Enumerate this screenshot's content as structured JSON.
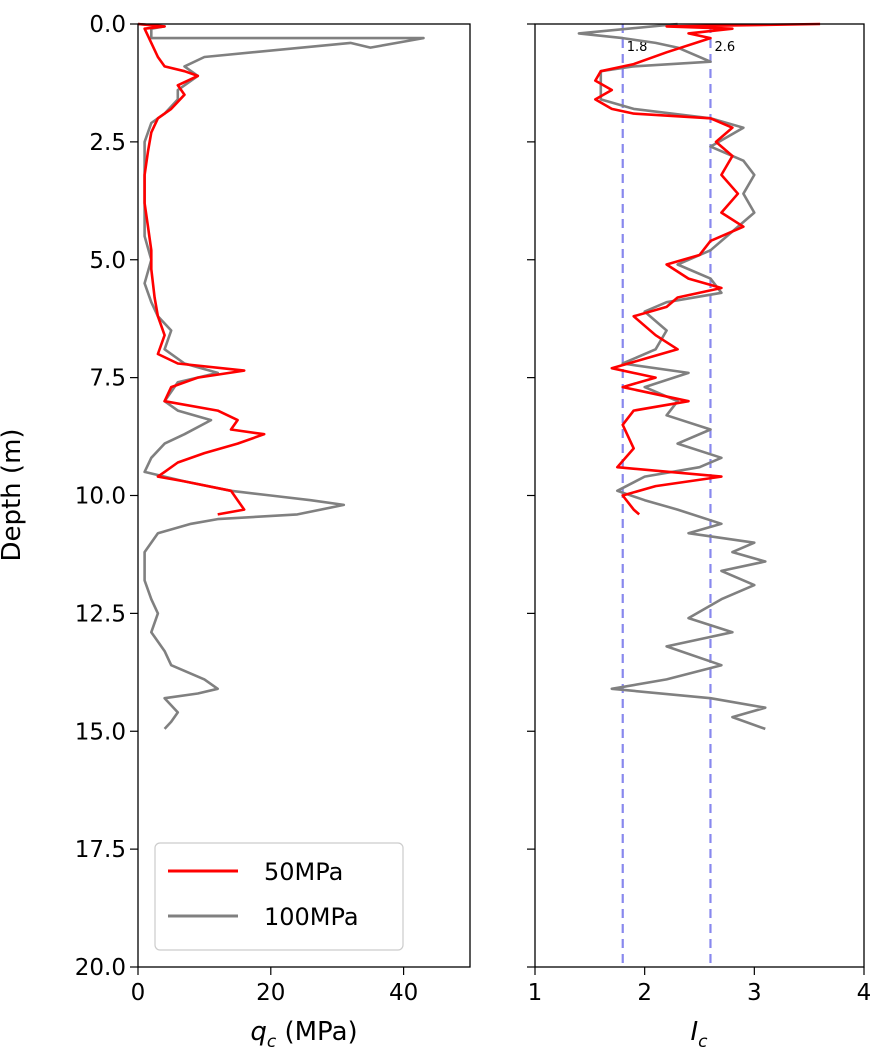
{
  "chart_data": [
    {
      "type": "line",
      "ylabel": "Depth (m)",
      "xlabel_main": "q",
      "xlabel_sub": "c",
      "xlabel_unit": " (MPa)",
      "xlim": [
        0,
        50
      ],
      "ylim": [
        20,
        0
      ],
      "xticks": [
        0,
        20,
        40
      ],
      "xtick_labels": [
        "0",
        "20",
        "40"
      ],
      "yticks": [
        0,
        2.5,
        5,
        7.5,
        10,
        12.5,
        15,
        17.5,
        20
      ],
      "ytick_labels": [
        "0.0",
        "2.5",
        "5.0",
        "7.5",
        "10.0",
        "12.5",
        "15.0",
        "17.5",
        "20.0"
      ],
      "legend_position": "lower-left",
      "series": [
        {
          "name": "50MPa",
          "color": "#ff0000",
          "points": [
            [
              0,
              0
            ],
            [
              4,
              0.05
            ],
            [
              1,
              0.1
            ],
            [
              2,
              0.4
            ],
            [
              3,
              0.7
            ],
            [
              4,
              0.9
            ],
            [
              7,
              1.0
            ],
            [
              9,
              1.1
            ],
            [
              6,
              1.3
            ],
            [
              7,
              1.5
            ],
            [
              5,
              1.8
            ],
            [
              3,
              2.0
            ],
            [
              2,
              2.3
            ],
            [
              1.5,
              2.7
            ],
            [
              1,
              3.2
            ],
            [
              1,
              3.8
            ],
            [
              1.5,
              4.3
            ],
            [
              2,
              4.8
            ],
            [
              2,
              5.2
            ],
            [
              2.5,
              5.8
            ],
            [
              3,
              6.2
            ],
            [
              4,
              6.6
            ],
            [
              3,
              7.0
            ],
            [
              6,
              7.2
            ],
            [
              16,
              7.35
            ],
            [
              9,
              7.5
            ],
            [
              5,
              7.7
            ],
            [
              4,
              8.0
            ],
            [
              12,
              8.2
            ],
            [
              15,
              8.4
            ],
            [
              14,
              8.6
            ],
            [
              19,
              8.7
            ],
            [
              15,
              8.9
            ],
            [
              10,
              9.1
            ],
            [
              6,
              9.3
            ],
            [
              4,
              9.5
            ],
            [
              3,
              9.6
            ],
            [
              7,
              9.7
            ],
            [
              14,
              9.9
            ],
            [
              15,
              10.1
            ],
            [
              16,
              10.3
            ],
            [
              12,
              10.4
            ]
          ]
        },
        {
          "name": "100MPa",
          "color": "#808080",
          "points": [
            [
              0,
              0
            ],
            [
              4,
              0.05
            ],
            [
              2,
              0.1
            ],
            [
              2,
              0.3
            ],
            [
              43,
              0.3
            ],
            [
              35,
              0.5
            ],
            [
              32,
              0.4
            ],
            [
              10,
              0.7
            ],
            [
              7,
              0.9
            ],
            [
              9,
              1.1
            ],
            [
              6,
              1.4
            ],
            [
              6,
              1.6
            ],
            [
              4,
              1.9
            ],
            [
              2,
              2.1
            ],
            [
              1,
              2.5
            ],
            [
              1,
              3.2
            ],
            [
              1,
              4.0
            ],
            [
              1,
              4.5
            ],
            [
              2,
              5.0
            ],
            [
              1,
              5.5
            ],
            [
              2,
              5.9
            ],
            [
              3,
              6.2
            ],
            [
              5,
              6.5
            ],
            [
              4,
              6.9
            ],
            [
              7,
              7.2
            ],
            [
              12,
              7.4
            ],
            [
              6,
              7.6
            ],
            [
              4,
              8.0
            ],
            [
              6,
              8.2
            ],
            [
              11,
              8.4
            ],
            [
              7,
              8.7
            ],
            [
              4,
              8.9
            ],
            [
              2,
              9.2
            ],
            [
              1,
              9.5
            ],
            [
              7,
              9.7
            ],
            [
              14,
              9.9
            ],
            [
              20,
              10.0
            ],
            [
              26,
              10.1
            ],
            [
              31,
              10.2
            ],
            [
              24,
              10.4
            ],
            [
              12,
              10.5
            ],
            [
              8,
              10.6
            ],
            [
              3,
              10.8
            ],
            [
              1,
              11.2
            ],
            [
              1,
              11.8
            ],
            [
              2,
              12.2
            ],
            [
              3,
              12.5
            ],
            [
              2,
              12.9
            ],
            [
              4,
              13.3
            ],
            [
              5,
              13.6
            ],
            [
              10,
              13.9
            ],
            [
              12,
              14.1
            ],
            [
              9,
              14.2
            ],
            [
              4,
              14.3
            ],
            [
              6,
              14.6
            ],
            [
              5,
              14.8
            ],
            [
              4,
              14.95
            ]
          ]
        }
      ]
    },
    {
      "type": "line",
      "xlabel_main": "I",
      "xlabel_sub": "c",
      "xlim": [
        1,
        4
      ],
      "ylim": [
        20,
        0
      ],
      "xticks": [
        1,
        2,
        3,
        4
      ],
      "xtick_labels": [
        "1",
        "2",
        "3",
        "4"
      ],
      "yticks": [
        0,
        2.5,
        5,
        7.5,
        10,
        12.5,
        15,
        17.5,
        20
      ],
      "vlines": [
        {
          "x": 1.8,
          "label": "1.8",
          "color": "#8888ee"
        },
        {
          "x": 2.6,
          "label": "2.6",
          "color": "#8888ee"
        }
      ],
      "series": [
        {
          "name": "50MPa",
          "color": "#ff0000",
          "points": [
            [
              3.6,
              0.0
            ],
            [
              2.2,
              0.05
            ],
            [
              2.8,
              0.1
            ],
            [
              2.4,
              0.2
            ],
            [
              2.6,
              0.3
            ],
            [
              2.2,
              0.6
            ],
            [
              1.9,
              0.85
            ],
            [
              1.6,
              1.0
            ],
            [
              1.55,
              1.2
            ],
            [
              1.7,
              1.4
            ],
            [
              1.55,
              1.6
            ],
            [
              1.7,
              1.8
            ],
            [
              1.9,
              1.9
            ],
            [
              2.6,
              2.0
            ],
            [
              2.8,
              2.2
            ],
            [
              2.65,
              2.5
            ],
            [
              2.8,
              2.8
            ],
            [
              2.7,
              3.2
            ],
            [
              2.85,
              3.6
            ],
            [
              2.7,
              4.0
            ],
            [
              2.9,
              4.3
            ],
            [
              2.6,
              4.6
            ],
            [
              2.5,
              4.9
            ],
            [
              2.2,
              5.1
            ],
            [
              2.4,
              5.4
            ],
            [
              2.7,
              5.6
            ],
            [
              2.3,
              5.8
            ],
            [
              2.2,
              6.0
            ],
            [
              1.9,
              6.2
            ],
            [
              2.1,
              6.6
            ],
            [
              2.3,
              6.9
            ],
            [
              2.0,
              7.1
            ],
            [
              1.7,
              7.3
            ],
            [
              2.1,
              7.5
            ],
            [
              1.8,
              7.7
            ],
            [
              2.4,
              8.0
            ],
            [
              1.9,
              8.2
            ],
            [
              1.8,
              8.5
            ],
            [
              1.9,
              9.0
            ],
            [
              1.75,
              9.4
            ],
            [
              2.7,
              9.6
            ],
            [
              2.1,
              9.8
            ],
            [
              1.8,
              10.0
            ],
            [
              1.9,
              10.3
            ],
            [
              1.95,
              10.4
            ]
          ]
        },
        {
          "name": "100MPa",
          "color": "#808080",
          "points": [
            [
              2.3,
              0.0
            ],
            [
              1.4,
              0.2
            ],
            [
              1.8,
              0.3
            ],
            [
              2.1,
              0.4
            ],
            [
              2.3,
              0.5
            ],
            [
              2.6,
              0.8
            ],
            [
              1.9,
              0.9
            ],
            [
              1.6,
              1.0
            ],
            [
              1.6,
              1.3
            ],
            [
              1.6,
              1.6
            ],
            [
              1.9,
              1.8
            ],
            [
              2.6,
              2.0
            ],
            [
              2.9,
              2.2
            ],
            [
              2.6,
              2.6
            ],
            [
              2.9,
              2.9
            ],
            [
              3.0,
              3.2
            ],
            [
              2.9,
              3.6
            ],
            [
              3.0,
              4.0
            ],
            [
              2.8,
              4.4
            ],
            [
              2.6,
              4.8
            ],
            [
              2.3,
              5.1
            ],
            [
              2.6,
              5.4
            ],
            [
              2.7,
              5.7
            ],
            [
              2.2,
              5.9
            ],
            [
              2.0,
              6.1
            ],
            [
              2.2,
              6.5
            ],
            [
              2.1,
              6.9
            ],
            [
              1.8,
              7.2
            ],
            [
              2.4,
              7.4
            ],
            [
              2.0,
              7.7
            ],
            [
              2.3,
              8.0
            ],
            [
              2.2,
              8.3
            ],
            [
              2.6,
              8.6
            ],
            [
              2.3,
              8.9
            ],
            [
              2.7,
              9.2
            ],
            [
              2.5,
              9.4
            ],
            [
              2.0,
              9.6
            ],
            [
              1.75,
              9.9
            ],
            [
              2.0,
              10.1
            ],
            [
              2.3,
              10.3
            ],
            [
              2.7,
              10.6
            ],
            [
              2.4,
              10.8
            ],
            [
              3.0,
              11.0
            ],
            [
              2.8,
              11.2
            ],
            [
              3.1,
              11.4
            ],
            [
              2.7,
              11.6
            ],
            [
              3.0,
              11.9
            ],
            [
              2.7,
              12.2
            ],
            [
              2.4,
              12.6
            ],
            [
              2.8,
              12.9
            ],
            [
              2.2,
              13.2
            ],
            [
              2.7,
              13.6
            ],
            [
              2.2,
              13.9
            ],
            [
              1.7,
              14.1
            ],
            [
              2.6,
              14.3
            ],
            [
              3.1,
              14.5
            ],
            [
              2.8,
              14.7
            ],
            [
              3.1,
              14.95
            ]
          ]
        }
      ]
    }
  ]
}
